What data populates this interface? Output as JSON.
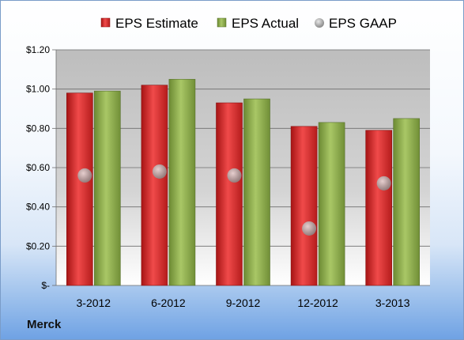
{
  "company": "Merck",
  "colors": {
    "estimate": "#d42a2a",
    "actual": "#8dac4a",
    "gaap": "#b8b8b8"
  },
  "chart_data": {
    "type": "bar",
    "title": "",
    "xlabel": "",
    "ylabel": "",
    "categories": [
      "3-2012",
      "6-2012",
      "9-2012",
      "12-2012",
      "3-2013"
    ],
    "series": [
      {
        "name": "EPS Estimate",
        "kind": "bar",
        "values": [
          0.98,
          1.02,
          0.93,
          0.81,
          0.79
        ]
      },
      {
        "name": "EPS Actual",
        "kind": "bar",
        "values": [
          0.99,
          1.05,
          0.95,
          0.83,
          0.85
        ]
      },
      {
        "name": "EPS GAAP",
        "kind": "marker",
        "values": [
          0.56,
          0.58,
          0.56,
          0.29,
          0.52
        ]
      }
    ],
    "ylim": [
      0,
      1.2
    ],
    "yticks": [
      0,
      0.2,
      0.4,
      0.6,
      0.8,
      1.0,
      1.2
    ],
    "ytick_labels": [
      "$-",
      "$0.20",
      "$0.40",
      "$0.60",
      "$0.80",
      "$1.00",
      "$1.20"
    ],
    "grid": true,
    "legend_position": "top"
  }
}
